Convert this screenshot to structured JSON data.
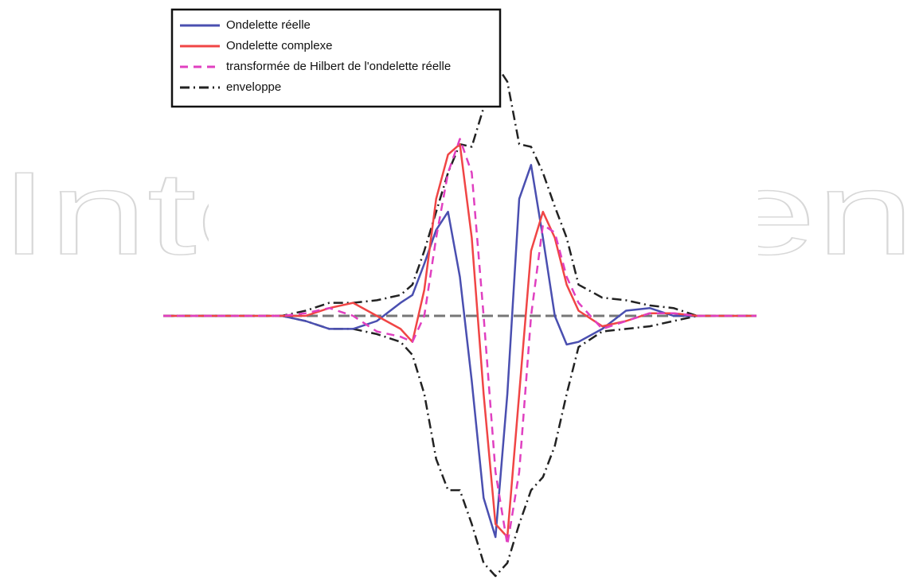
{
  "watermark": "IntechOpen",
  "chart_data": {
    "type": "line",
    "x": [
      0,
      20,
      24,
      28,
      32,
      36,
      40,
      42,
      44,
      46,
      48,
      50,
      52,
      54,
      56,
      58,
      60,
      62,
      64,
      66,
      68,
      70,
      74,
      78,
      82,
      86,
      90,
      100
    ],
    "xlim": [
      0,
      100
    ],
    "ylim": [
      -1,
      1
    ],
    "series": [
      {
        "name": "Ondelette réelle",
        "color": "#4a4fb0",
        "dash": "solid",
        "values": [
          0,
          0,
          -0.02,
          -0.05,
          -0.05,
          -0.02,
          0.05,
          0.08,
          0.2,
          0.33,
          0.4,
          0.15,
          -0.25,
          -0.7,
          -0.85,
          -0.3,
          0.45,
          0.58,
          0.3,
          0,
          -0.11,
          -0.1,
          -0.05,
          0.02,
          0.03,
          0,
          0,
          0
        ]
      },
      {
        "name": "Ondelette complexe",
        "color": "#f04545",
        "dash": "solid",
        "values": [
          0,
          0,
          0,
          0.03,
          0.05,
          0,
          -0.05,
          -0.1,
          0.1,
          0.45,
          0.62,
          0.66,
          0.3,
          -0.3,
          -0.8,
          -0.85,
          -0.3,
          0.25,
          0.4,
          0.3,
          0.12,
          0.02,
          -0.04,
          -0.02,
          0.01,
          0.01,
          0,
          0
        ]
      },
      {
        "name": "transformée de Hilbert de l'ondelette réelle",
        "color": "#e040c0",
        "dash": "dashed",
        "values": [
          0,
          0,
          0.01,
          0.03,
          0,
          -0.06,
          -0.08,
          -0.1,
          0,
          0.3,
          0.55,
          0.68,
          0.55,
          0,
          -0.6,
          -0.88,
          -0.6,
          0,
          0.35,
          0.32,
          0.15,
          0.05,
          -0.05,
          -0.02,
          0.01,
          0.01,
          0,
          0
        ]
      },
      {
        "name": "enveloppe",
        "color": "#222222",
        "dash": "dashdot",
        "values": [
          0,
          0,
          0.02,
          0.05,
          0.05,
          0.06,
          0.08,
          0.12,
          0.25,
          0.4,
          0.55,
          0.66,
          0.65,
          0.8,
          0.97,
          0.9,
          0.66,
          0.65,
          0.55,
          0.42,
          0.3,
          0.12,
          0.07,
          0.06,
          0.04,
          0.03,
          0,
          0
        ],
        "lower_values": [
          0,
          0,
          -0.02,
          -0.05,
          -0.05,
          -0.07,
          -0.1,
          -0.15,
          -0.3,
          -0.55,
          -0.67,
          -0.67,
          -0.8,
          -0.95,
          -1,
          -0.95,
          -0.8,
          -0.67,
          -0.62,
          -0.5,
          -0.3,
          -0.12,
          -0.06,
          -0.05,
          -0.04,
          -0.02,
          0,
          0
        ]
      }
    ],
    "zero_line": true,
    "legend": "top-left"
  }
}
